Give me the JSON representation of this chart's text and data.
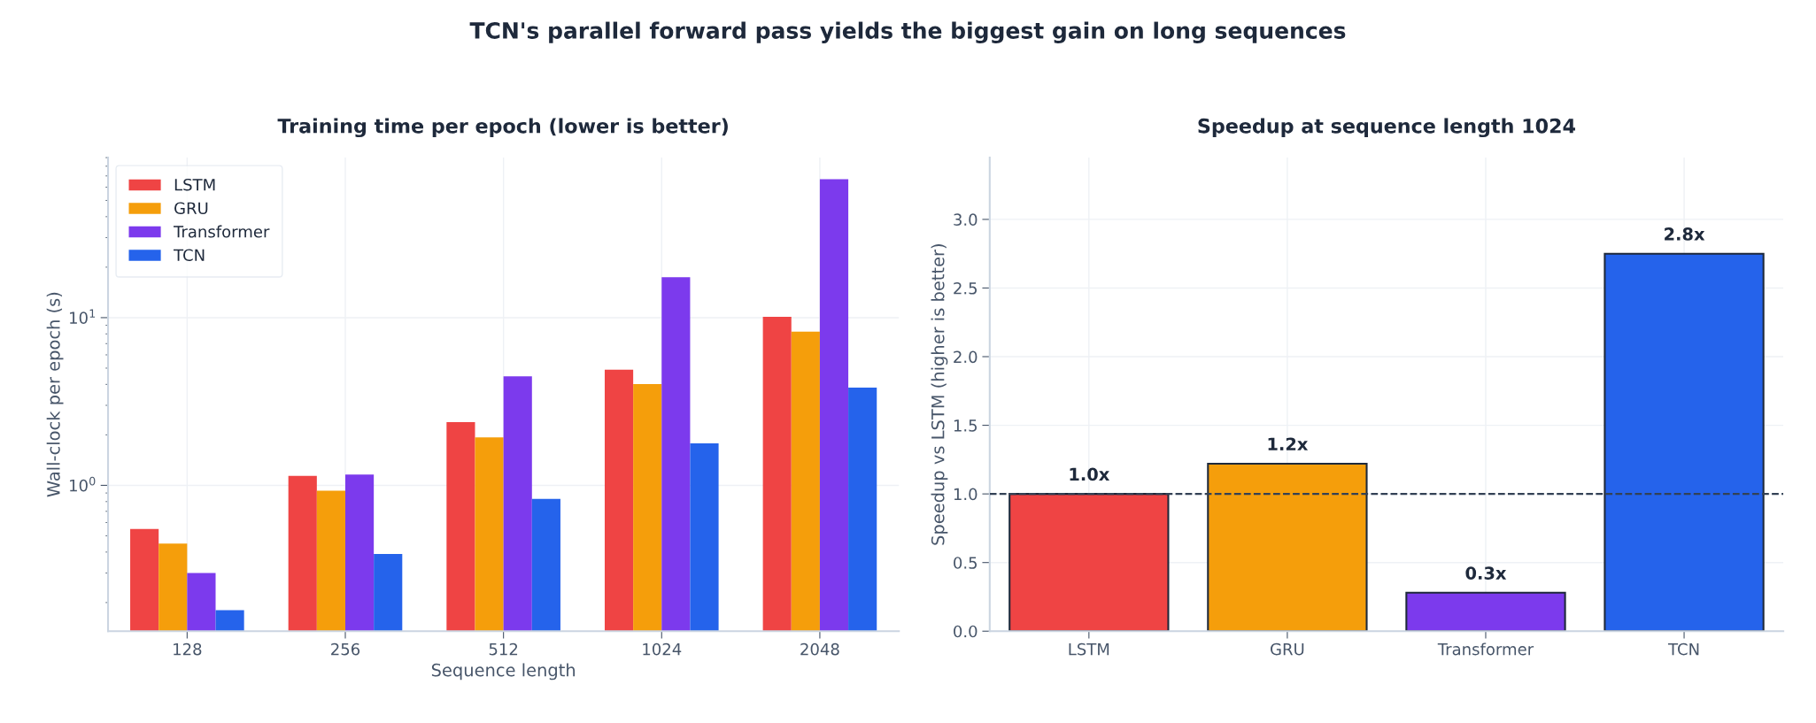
{
  "chart_data": [
    {
      "type": "bar",
      "title": "Training time per epoch (lower is better)",
      "xlabel": "Sequence length",
      "ylabel": "Wall-clock per epoch (s)",
      "annotations": [
        "TCN's parallel forward pass yields the biggest gain on long sequences"
      ],
      "categories": [
        "128",
        "256",
        "512",
        "1024",
        "2048"
      ],
      "series": [
        {
          "name": "LSTM",
          "color": "#ef4444",
          "values": [
            0.55,
            1.14,
            2.38,
            4.89,
            10.1
          ]
        },
        {
          "name": "GRU",
          "color": "#f59e0b",
          "values": [
            0.45,
            0.93,
            1.93,
            4.02,
            8.24
          ]
        },
        {
          "name": "Transformer",
          "color": "#7c3aed",
          "values": [
            0.3,
            1.16,
            4.47,
            17.4,
            67
          ]
        },
        {
          "name": "TCN",
          "color": "#2563eb",
          "values": [
            0.18,
            0.39,
            0.83,
            1.78,
            3.83
          ]
        }
      ],
      "log": true,
      "ylim": [
        0.135,
        90
      ],
      "yticks": [
        {
          "value": 1,
          "label": "10$^{0}$"
        },
        {
          "value": 10,
          "label": "10$^{1}$"
        }
      ],
      "grid": true,
      "legend": "top left"
    },
    {
      "type": "bar",
      "title": "Speedup at sequence length 1024",
      "ylabel": "Speedup vs LSTM (higher is better)",
      "categories": [
        "LSTM",
        "GRU",
        "Transformer",
        "TCN"
      ],
      "values": [
        1.0,
        1.22,
        0.28,
        2.75
      ],
      "colors": [
        "#ef4444",
        "#f59e0b",
        "#7c3aed",
        "#2563eb"
      ],
      "value_labels": [
        "1.0x",
        "1.2x",
        "0.3x",
        "2.8x"
      ],
      "ylim": [
        0,
        3.45
      ],
      "yticks": [
        {
          "value": 0,
          "label": "0.0"
        },
        {
          "value": 0.5,
          "label": "0.5"
        },
        {
          "value": 1,
          "label": "1.0"
        },
        {
          "value": 1.5,
          "label": "1.5"
        },
        {
          "value": 2,
          "label": "2.0"
        },
        {
          "value": 2.5,
          "label": "2.5"
        },
        {
          "value": 3,
          "label": "3.0"
        }
      ],
      "ref_lines": [
        {
          "axis": "y",
          "value": 1,
          "color": "#334155",
          "line_style": "dashed"
        }
      ],
      "grid": true
    }
  ]
}
